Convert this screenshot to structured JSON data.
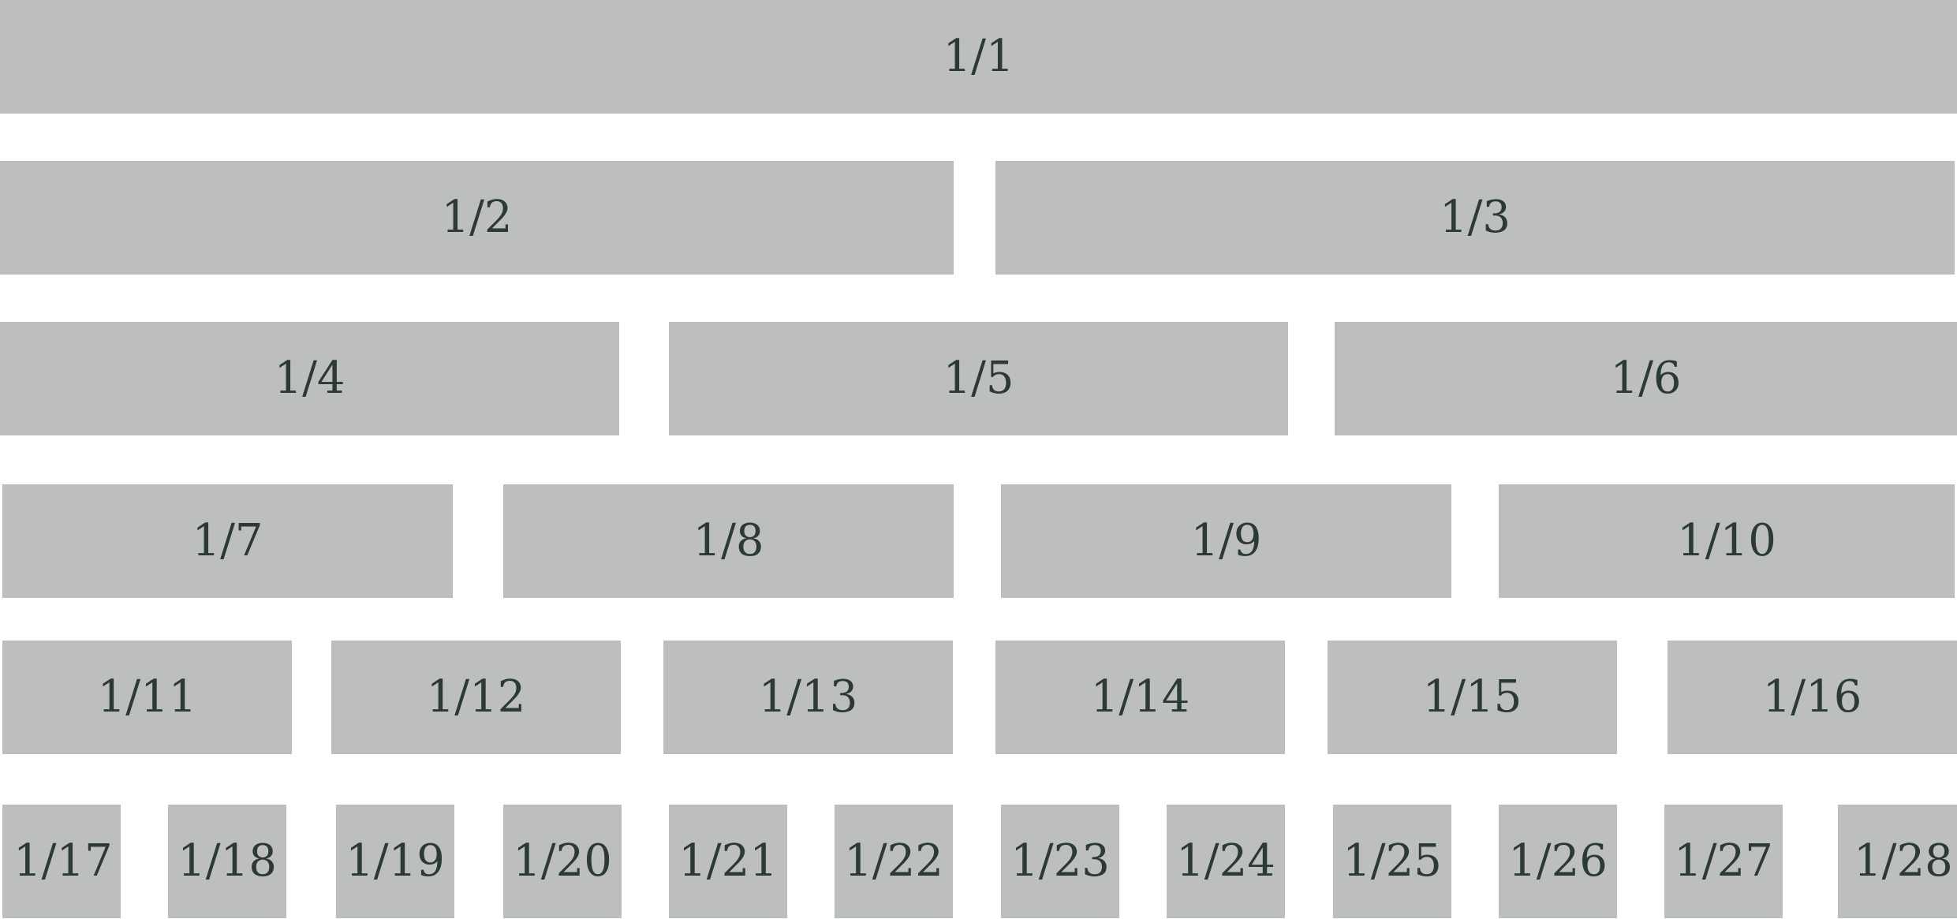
{
  "colors": {
    "background": "#ffffff",
    "cell_fill": "#bdbec0",
    "label_text": "#2b3a36"
  },
  "rows": [
    {
      "labels": [
        "1/1"
      ]
    },
    {
      "labels": [
        "1/2",
        "1/3"
      ]
    },
    {
      "labels": [
        "1/4",
        "1/5",
        "1/6"
      ]
    },
    {
      "labels": [
        "1/7",
        "1/8",
        "1/9",
        "1/10"
      ]
    },
    {
      "labels": [
        "1/11",
        "1/12",
        "1/13",
        "1/14",
        "1/15",
        "1/16"
      ]
    },
    {
      "labels": [
        "1/17",
        "1/18",
        "1/19",
        "1/20",
        "1/21",
        "1/22",
        "1/23",
        "1/24",
        "1/25",
        "1/26",
        "1/27",
        "1/28"
      ]
    }
  ]
}
